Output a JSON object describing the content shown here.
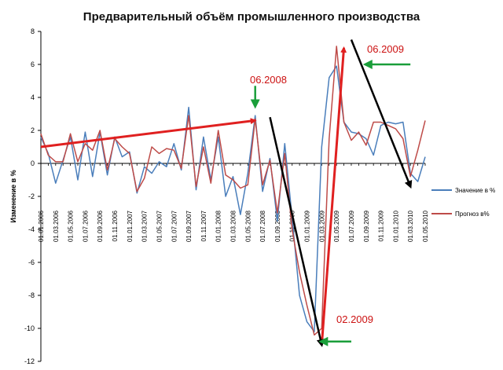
{
  "chart_data": {
    "type": "line",
    "title": "Предварительный объём промышленного производства",
    "ylabel": "Изменение в %",
    "ylim": [
      -12,
      8
    ],
    "yticks": [
      8,
      6,
      4,
      2,
      0,
      -2,
      -4,
      -6,
      -8,
      -10,
      -12
    ],
    "x": [
      "01.01.2006",
      "01.02.2006",
      "01.03.2006",
      "01.04.2006",
      "01.05.2006",
      "01.06.2006",
      "01.07.2006",
      "01.08.2006",
      "01.09.2006",
      "01.10.2006",
      "01.11.2006",
      "01.12.2006",
      "01.01.2007",
      "01.02.2007",
      "01.03.2007",
      "01.04.2007",
      "01.05.2007",
      "01.06.2007",
      "01.07.2007",
      "01.08.2007",
      "01.09.2007",
      "01.10.2007",
      "01.11.2007",
      "01.12.2007",
      "01.01.2008",
      "01.02.2008",
      "01.03.2008",
      "01.04.2008",
      "01.05.2008",
      "01.06.2008",
      "01.07.2008",
      "01.08.2008",
      "01.09.2008",
      "01.10.2008",
      "01.11.2008",
      "01.12.2008",
      "01.01.2009",
      "01.02.2009",
      "01.03.2009",
      "01.04.2009",
      "01.05.2009",
      "01.06.2009",
      "01.07.2009",
      "01.08.2009",
      "01.09.2009",
      "01.10.2009",
      "01.11.2009",
      "01.12.2009",
      "01.01.2010",
      "01.02.2010",
      "01.03.2010",
      "01.04.2010",
      "01.05.2010"
    ],
    "xticks": [
      "01.01.2006",
      "01.03.2006",
      "01.05.2006",
      "01.07.2006",
      "01.09.2006",
      "01.11.2006",
      "01.01.2007",
      "01.03.2007",
      "01.05.2007",
      "01.07.2007",
      "01.09.2007",
      "01.11.2007",
      "01.01.2008",
      "01.03.2008",
      "01.05.2008",
      "01.07.2008",
      "01.09.2008",
      "01.11.2008",
      "01.01.2009",
      "01.03.2009",
      "01.05.2009",
      "01.07.2009",
      "01.09.2009",
      "01.11.2009",
      "01.01.2010",
      "01.03.2010",
      "01.05.2010"
    ],
    "series": [
      {
        "name": "Значение в %",
        "color": "#4a7ebb",
        "values": [
          1.6,
          0.6,
          -1.2,
          0.2,
          1.6,
          -1.0,
          1.9,
          -0.8,
          1.9,
          -0.7,
          1.6,
          0.4,
          0.7,
          -1.8,
          -0.2,
          -0.6,
          0.1,
          -0.2,
          1.2,
          -0.4,
          3.4,
          -1.6,
          1.6,
          -1.0,
          1.6,
          -2.0,
          -0.8,
          -3.1,
          -0.6,
          2.9,
          -1.7,
          0.3,
          -3.5,
          1.2,
          -3.3,
          -8.0,
          -9.6,
          -10.2,
          1.0,
          5.2,
          5.9,
          2.5,
          1.9,
          1.8,
          1.5,
          0.5,
          2.3,
          2.5,
          2.4,
          2.5,
          -0.6,
          -1.1,
          0.4
        ]
      },
      {
        "name": "Прогноз в%",
        "color": "#be4b48",
        "values": [
          1.8,
          0.5,
          0.1,
          0.1,
          1.8,
          0.1,
          1.2,
          0.8,
          2.0,
          -0.4,
          1.5,
          1.0,
          0.6,
          -1.7,
          -0.9,
          1.0,
          0.6,
          0.9,
          0.8,
          -0.3,
          2.9,
          -1.4,
          1.0,
          -1.2,
          2.0,
          -0.7,
          -1.0,
          -1.5,
          -1.3,
          2.7,
          -1.3,
          0.2,
          -3.0,
          0.6,
          -4.0,
          -6.6,
          -8.6,
          -10.4,
          -10.0,
          1.5,
          7.1,
          2.5,
          1.4,
          1.9,
          1.1,
          2.5,
          2.5,
          2.3,
          2.1,
          1.5,
          -0.8,
          0.8,
          2.6
        ]
      }
    ],
    "legend": "right",
    "grid": false,
    "annotations": [
      {
        "label": "06.2008",
        "color": "#cc1111"
      },
      {
        "label": "06.2009",
        "color": "#cc1111"
      },
      {
        "label": "02.2009",
        "color": "#cc1111"
      }
    ],
    "arrows": [
      {
        "color": "#e02020",
        "from": [
          "01.01.2006",
          1.0
        ],
        "to": [
          "01.06.2008",
          2.6
        ]
      },
      {
        "color": "#e02020",
        "from": [
          "01.03.2009",
          -11.0
        ],
        "to": [
          "01.06.2009",
          7.0
        ]
      },
      {
        "color": "#000000",
        "from": [
          "01.08.2008",
          2.8
        ],
        "to": [
          "01.03.2009",
          -11.0
        ]
      },
      {
        "color": "#000000",
        "from": [
          "01.07.2009",
          7.5
        ],
        "to": [
          "01.03.2010",
          -1.4
        ]
      },
      {
        "color": "#1a9e3a",
        "from": [
          "01.06.2008",
          4.7
        ],
        "to": [
          "01.06.2008",
          3.5
        ]
      },
      {
        "color": "#1a9e3a",
        "from": [
          "01.03.2010",
          6.0
        ],
        "to": [
          "01.09.2009",
          6.0
        ]
      },
      {
        "color": "#1a9e3a",
        "from": [
          "01.07.2009",
          -10.8
        ],
        "to": [
          "01.03.2009",
          -10.8
        ]
      }
    ]
  }
}
